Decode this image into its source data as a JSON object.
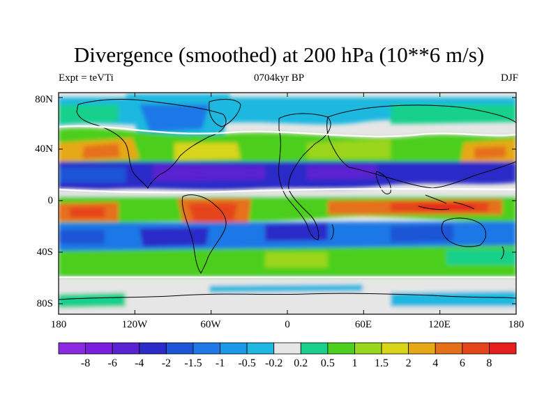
{
  "title": "Divergence (smoothed) at 200 hPa (10**6 m/s)",
  "subtitle_left": "Expt = teVTi",
  "subtitle_center": "0704kyr BP",
  "subtitle_right": "DJF",
  "y_axis_labels": [
    "80N",
    "40N",
    "0",
    "40S",
    "80S"
  ],
  "x_axis_labels": [
    "180",
    "120W",
    "60W",
    "0",
    "60E",
    "120E",
    "180"
  ],
  "colorbar": {
    "colors": [
      "#8a2be2",
      "#7a1fe0",
      "#5a22d0",
      "#2b2bc8",
      "#1d55d6",
      "#1f78e6",
      "#1a9ae6",
      "#1fb8e0",
      "#e6e6e6",
      "#19d08c",
      "#4ccf1e",
      "#9ad51f",
      "#d8d41a",
      "#e6a817",
      "#e6701a",
      "#e6441a",
      "#e61e1e"
    ],
    "labels": [
      "-8",
      "-6",
      "-4",
      "-2",
      "-1.5",
      "-1",
      "-0.5",
      "-0.2",
      "0.2",
      "0.5",
      "1",
      "1.5",
      "2",
      "4",
      "6",
      "8"
    ]
  }
}
